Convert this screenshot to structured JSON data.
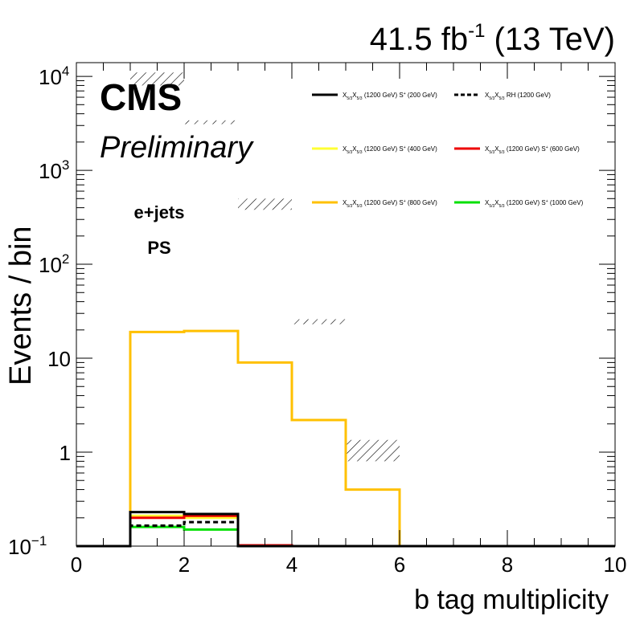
{
  "header": {
    "lumi_value": "41.5 fb",
    "lumi_exp": "-1",
    "energy": " (13 TeV)"
  },
  "labels": {
    "experiment": "CMS",
    "status": "Preliminary",
    "channel": "e+jets",
    "region": "PS"
  },
  "chart_data": {
    "type": "histogram",
    "title": "",
    "xlabel": "b tag multiplicity",
    "ylabel": "Events / bin",
    "xlim": [
      0,
      10
    ],
    "ylim": [
      0.1,
      14000
    ],
    "yscale": "log",
    "grid": false,
    "legend_position": "top-right",
    "x_ticks": [
      "0",
      "2",
      "4",
      "6",
      "8",
      "10"
    ],
    "y_ticks": [
      {
        "value": 0.1,
        "base": "10",
        "exp": "−1"
      },
      {
        "value": 1,
        "base": "1",
        "exp": ""
      },
      {
        "value": 10,
        "base": "10",
        "exp": ""
      },
      {
        "value": 100,
        "base": "10",
        "exp": "2"
      },
      {
        "value": 1000,
        "base": "10",
        "exp": "3"
      },
      {
        "value": 10000,
        "base": "10",
        "exp": "4"
      }
    ],
    "bin_edges": [
      0,
      1,
      2,
      3,
      4,
      5,
      6,
      7,
      8,
      9,
      10
    ],
    "series": [
      {
        "name": "X_{5/3}X̄_{5/3} (1200 GeV) S⁺ (200 GeV)",
        "color": "#000000",
        "dash": false,
        "values": [
          0.1,
          0.23,
          0.22,
          0.1,
          0.1,
          0.1,
          0.1,
          0.1,
          0.1,
          0.1
        ]
      },
      {
        "name": "X_{5/3}X̄_{5/3} RH (1200 GeV)",
        "color": "#000000",
        "dash": true,
        "values": [
          0.1,
          0.165,
          0.18,
          0.1,
          0.1,
          0.1,
          0.1,
          0.1,
          0.1,
          0.1
        ]
      },
      {
        "name": "X_{5/3}X̄_{5/3} (1200 GeV) S⁺ (400 GeV)",
        "color": "#ffff33",
        "dash": false,
        "values": [
          0.1,
          0.21,
          0.2,
          0.1,
          0.1,
          0.1,
          0.1,
          0.1,
          0.1,
          0.1
        ]
      },
      {
        "name": "X_{5/3}X̄_{5/3} (1200 GeV) S⁺ (600 GeV)",
        "color": "#ee0000",
        "dash": false,
        "values": [
          0.1,
          0.2,
          0.21,
          0.102,
          0.1,
          0.1,
          0.1,
          0.1,
          0.1,
          0.1
        ]
      },
      {
        "name": "X_{5/3}X̄_{5/3} (1200 GeV) S⁺ (800 GeV)",
        "color": "#ffc000",
        "dash": false,
        "values": [
          0.1,
          19.0,
          19.5,
          9.0,
          2.2,
          0.4,
          0.1,
          0.1,
          0.1,
          0.1
        ]
      },
      {
        "name": "X_{5/3}X̄_{5/3} (1200 GeV) S⁺ (1000 GeV)",
        "color": "#00e000",
        "dash": false,
        "values": [
          0.1,
          0.16,
          0.15,
          0.1,
          0.1,
          0.1,
          0.1,
          0.1,
          0.1,
          0.1
        ]
      }
    ],
    "uncertainty_bands": [
      {
        "bin": [
          1,
          2
        ],
        "low": 8000,
        "high": 11000
      },
      {
        "bin": [
          2,
          3
        ],
        "low": 3100,
        "high": 3400
      },
      {
        "bin": [
          3,
          4
        ],
        "low": 380,
        "high": 500
      },
      {
        "bin": [
          4,
          5
        ],
        "low": 23,
        "high": 26
      },
      {
        "bin": [
          5,
          6
        ],
        "low": 0.8,
        "high": 1.35
      }
    ],
    "legend": {
      "columns": 2,
      "entries": [
        {
          "main": "X",
          "sub1": "5/3",
          "bar": "X",
          "sub2": "5/3",
          "rest": " (1200 GeV) S",
          "sup": "+",
          "tail": " (200 GeV)",
          "color": "#000000",
          "dash": false
        },
        {
          "main": "X",
          "sub1": "5/3",
          "bar": "X",
          "sub2": "5/3",
          "rest": " RH (1200 GeV)",
          "sup": "",
          "tail": "",
          "color": "#000000",
          "dash": true
        },
        {
          "main": "X",
          "sub1": "5/3",
          "bar": "X",
          "sub2": "5/3",
          "rest": " (1200 GeV) S",
          "sup": "+",
          "tail": " (400 GeV)",
          "color": "#ffff33",
          "dash": false
        },
        {
          "main": "X",
          "sub1": "5/3",
          "bar": "X",
          "sub2": "5/3",
          "rest": " (1200 GeV) S",
          "sup": "+",
          "tail": " (600 GeV)",
          "color": "#ee0000",
          "dash": false
        },
        {
          "main": "X",
          "sub1": "5/3",
          "bar": "X",
          "sub2": "5/3",
          "rest": " (1200 GeV) S",
          "sup": "+",
          "tail": " (800 GeV)",
          "color": "#ffc000",
          "dash": false
        },
        {
          "main": "X",
          "sub1": "5/3",
          "bar": "X",
          "sub2": "5/3",
          "rest": " (1200 GeV) S",
          "sup": "+",
          "tail": " (1000 GeV)",
          "color": "#00e000",
          "dash": false
        }
      ]
    }
  }
}
